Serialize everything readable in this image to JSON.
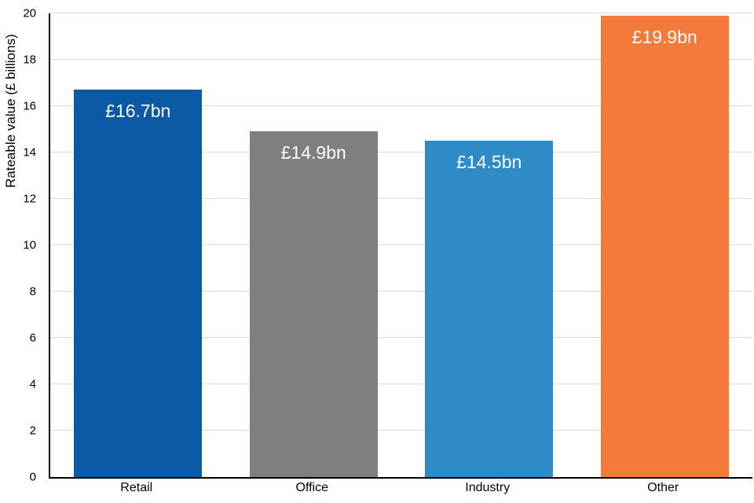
{
  "chart_data": {
    "type": "bar",
    "categories": [
      "Retail",
      "Office",
      "Industry",
      "Other"
    ],
    "values": [
      16.7,
      14.9,
      14.5,
      19.9
    ],
    "bar_labels": [
      "£16.7bn",
      "£14.9bn",
      "£14.5bn",
      "£19.9bn"
    ],
    "bar_colors": [
      "#0a5aa5",
      "#7f7f7f",
      "#2e8bc5",
      "#f47a3c"
    ],
    "title": "",
    "xlabel": "",
    "ylabel": "Rateable value (£ billions)",
    "ylim": [
      0,
      20
    ],
    "ytick_step": 2,
    "ytick_labels": [
      "0",
      "2",
      "4",
      "6",
      "8",
      "10",
      "12",
      "14",
      "16",
      "18",
      "20"
    ],
    "grid": true,
    "gridline_color": "#d9d9d9",
    "axis_color": "#000000",
    "label_text_color": "#ffffff",
    "legend": "none"
  }
}
